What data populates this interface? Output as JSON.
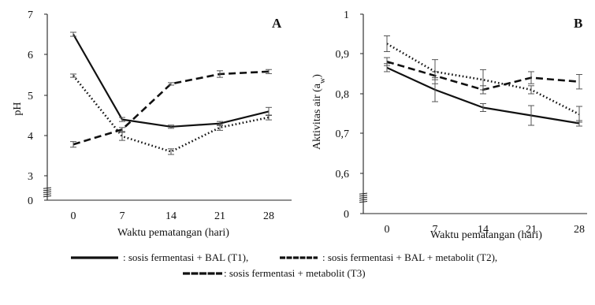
{
  "legend": [
    {
      "text": ": sosis fermentasi + BAL (T1),",
      "style": "solid"
    },
    {
      "text": ": sosis fermentasi + BAL + metabolit (T2),",
      "style": "dashed"
    },
    {
      "text": ": sosis fermentasi + metabolit (T3)",
      "style": "dotted"
    }
  ],
  "chart_data": [
    {
      "type": "line",
      "panel_label": "A",
      "xlabel": "Waktu pematangan (hari)",
      "ylabel": "pH",
      "categories": [
        "0",
        "7",
        "14",
        "21",
        "28"
      ],
      "ylim": [
        0,
        7
      ],
      "yticks": [
        "0",
        "3",
        "4",
        "5",
        "6",
        "7"
      ],
      "axis_break": true,
      "grid": false,
      "series": [
        {
          "name": "T1",
          "style": "solid",
          "values": [
            6.5,
            4.4,
            4.22,
            4.3,
            4.6
          ],
          "err": [
            0.05,
            0.05,
            0.04,
            0.05,
            0.1
          ]
        },
        {
          "name": "T2",
          "style": "dashed",
          "values": [
            3.78,
            4.15,
            5.28,
            5.52,
            5.58
          ],
          "err": [
            0.07,
            0.05,
            0.03,
            0.08,
            0.05
          ]
        },
        {
          "name": "T3",
          "style": "dotted",
          "values": [
            5.48,
            3.98,
            3.6,
            4.2,
            4.45
          ],
          "err": [
            0.04,
            0.1,
            0.07,
            0.07,
            0.06
          ]
        }
      ]
    },
    {
      "type": "line",
      "panel_label": "B",
      "xlabel": "Waktu pematangan (hari)",
      "ylabel": "Aktivitas air (a",
      "ylabel_sub": "w",
      "ylabel_end": ")",
      "categories": [
        "0",
        "7",
        "14",
        "21",
        "28"
      ],
      "ylim": [
        0,
        1
      ],
      "yticks": [
        "0",
        "0,6",
        "0,7",
        "0,8",
        "0,9",
        "1"
      ],
      "axis_break": true,
      "grid": false,
      "series": [
        {
          "name": "T1",
          "style": "solid",
          "values": [
            0.865,
            0.81,
            0.765,
            0.745,
            0.725
          ],
          "err": [
            0.01,
            0.03,
            0.01,
            0.025,
            0.007
          ]
        },
        {
          "name": "T2",
          "style": "dashed",
          "values": [
            0.88,
            0.845,
            0.81,
            0.84,
            0.83
          ],
          "err": [
            0.01,
            0.01,
            0.01,
            0.015,
            0.018
          ]
        },
        {
          "name": "T3",
          "style": "dotted",
          "values": [
            0.925,
            0.855,
            0.835,
            0.81,
            0.748
          ],
          "err": [
            0.02,
            0.03,
            0.025,
            0.01,
            0.02
          ]
        }
      ]
    }
  ]
}
